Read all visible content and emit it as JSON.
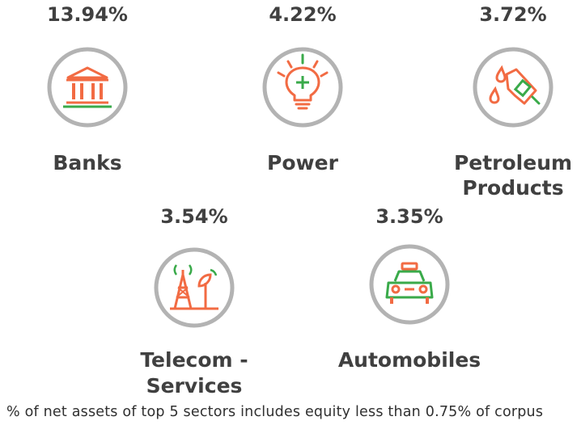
{
  "sectors": [
    {
      "percent": "13.94%",
      "name_line1": "Banks",
      "name_line2": "",
      "icon": "bank-building-icon"
    },
    {
      "percent": "4.22%",
      "name_line1": "Power",
      "name_line2": "",
      "icon": "lightbulb-icon"
    },
    {
      "percent": "3.72%",
      "name_line1": "Petroleum",
      "name_line2": "Products",
      "icon": "fuel-nozzle-icon"
    },
    {
      "percent": "3.54%",
      "name_line1": "Telecom -",
      "name_line2": "Services",
      "icon": "telecom-tower-icon"
    },
    {
      "percent": "3.35%",
      "name_line1": "Automobiles",
      "name_line2": "",
      "icon": "taxi-car-icon"
    }
  ],
  "footnote": "% of net assets of top 5 sectors includes equity less than 0.75% of corpus",
  "colors": {
    "accent_orange": "#f26b43",
    "accent_green": "#3aaa4a",
    "circle_gray": "#b3b3b3",
    "text": "#404040"
  }
}
